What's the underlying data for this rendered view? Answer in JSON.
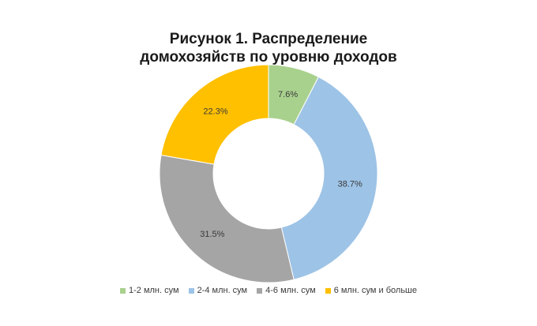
{
  "chart_data": {
    "type": "pie",
    "title_line1": "Рисунок 1. Распределение",
    "title_line2": "домохозяйств по уровню доходов",
    "categories": [
      "1-2 млн. сум",
      "2-4 млн. сум",
      "4-6 млн. сум",
      "6 млн. сум и больше"
    ],
    "values": [
      7.6,
      38.7,
      31.5,
      22.3
    ],
    "labels": [
      "7.6%",
      "38.7%",
      "31.5%",
      "22.3%"
    ],
    "colors": [
      "#a9d18e",
      "#9dc3e6",
      "#a5a5a5",
      "#ffc000"
    ],
    "donut": true,
    "legend_position": "bottom"
  }
}
